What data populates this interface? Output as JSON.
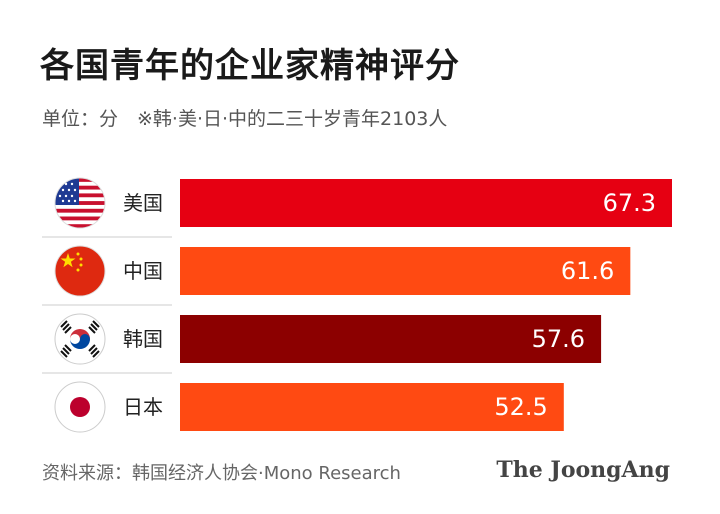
{
  "chart_data": {
    "type": "bar",
    "orientation": "horizontal",
    "title": "各国青年的企业家精神评分",
    "subtitle": "单位：分　※韩·美·日·中的二三十岁青年2103人",
    "categories": [
      "美国",
      "中国",
      "韩国",
      "日本"
    ],
    "values": [
      67.3,
      61.6,
      57.6,
      52.5
    ],
    "value_labels": [
      "67.3",
      "61.6",
      "57.6",
      "52.5"
    ],
    "bar_colors": [
      "#e60012",
      "#ff4a12",
      "#8c0000",
      "#ff4a12"
    ],
    "flags": [
      "us-flag-icon",
      "china-flag-icon",
      "korea-flag-icon",
      "japan-flag-icon"
    ],
    "xlim": [
      0,
      70
    ],
    "grid": false,
    "legend": "none"
  },
  "footer": {
    "source": "资料来源：韩国经济人协会·Mono Research",
    "brand": "The JoongAng"
  }
}
